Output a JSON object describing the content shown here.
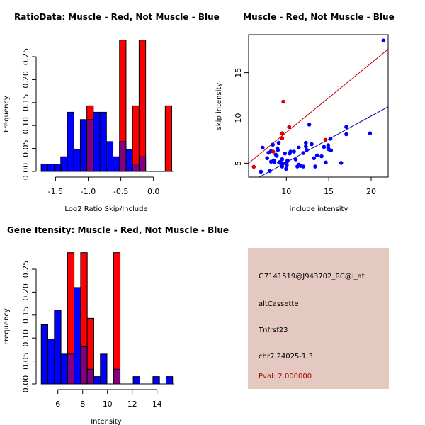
{
  "chart_data": [
    {
      "type": "bar",
      "subtype": "overlaid-histogram",
      "title": "RatioData: Muscle - Red, Not Muscle - Blue",
      "xlabel": "Log2 Ratio Skip/Include",
      "ylabel": "Frequency",
      "bin_start": -1.72,
      "bin_width": 0.1,
      "xticks": [
        -1.5,
        -1.0,
        -0.5,
        0.0
      ],
      "xtick_labels": [
        "-1.5",
        "-1.0",
        "-0.5",
        "0.0"
      ],
      "yticks": [
        0,
        0.05,
        0.1,
        0.15,
        0.2,
        0.25
      ],
      "ytick_labels": [
        "0.00",
        "0.05",
        "0.10",
        "0.15",
        "0.20",
        "0.25"
      ],
      "ylim": [
        0,
        0.286
      ],
      "series": [
        {
          "name": "Not Muscle",
          "color": "#0000ff",
          "values": [
            0.016,
            0.016,
            0.016,
            0.032,
            0.129,
            0.048,
            0.113,
            0.113,
            0.129,
            0.129,
            0.065,
            0.032,
            0.065,
            0.048,
            0.016,
            0.032,
            0,
            0,
            0,
            0
          ]
        },
        {
          "name": "Muscle",
          "color": "#ff0000",
          "values": [
            0,
            0,
            0,
            0,
            0,
            0,
            0,
            0.143,
            0,
            0,
            0,
            0,
            0.286,
            0,
            0.143,
            0.286,
            0,
            0,
            0,
            0.143
          ]
        }
      ]
    },
    {
      "type": "scatter",
      "title": "Muscle - Red, Not Muscle - Blue",
      "xlabel": "include intensity",
      "ylabel": "skip intensity",
      "xlim": [
        5.55,
        22.0
      ],
      "ylim": [
        3.46,
        19.2
      ],
      "xticks": [
        10,
        15,
        20
      ],
      "xtick_labels": [
        "10",
        "15",
        "20"
      ],
      "yticks": [
        5,
        10,
        15
      ],
      "ytick_labels": [
        "5",
        "10",
        "15"
      ],
      "series": [
        {
          "name": "Not Muscle",
          "color": "#0000ff",
          "points": [
            [
              7.0,
              4.06
            ],
            [
              7.2,
              6.72
            ],
            [
              7.74,
              5.55
            ],
            [
              7.9,
              6.15
            ],
            [
              8.05,
              4.14
            ],
            [
              8.2,
              6.33
            ],
            [
              8.2,
              5.16
            ],
            [
              8.4,
              7.04
            ],
            [
              8.5,
              5.3
            ],
            [
              8.6,
              5.13
            ],
            [
              8.75,
              5.94
            ],
            [
              8.86,
              5.81
            ],
            [
              8.94,
              6.64
            ],
            [
              9.0,
              6.46
            ],
            [
              9.1,
              7.25
            ],
            [
              9.14,
              5.08
            ],
            [
              9.3,
              5.16
            ],
            [
              9.4,
              4.9
            ],
            [
              9.5,
              5.44
            ],
            [
              9.5,
              4.63
            ],
            [
              9.6,
              4.97
            ],
            [
              9.83,
              6.07
            ],
            [
              9.97,
              4.37
            ],
            [
              10.05,
              4.76
            ],
            [
              10.05,
              5.1
            ],
            [
              10.14,
              5.3
            ],
            [
              10.4,
              6.07
            ],
            [
              10.5,
              6.28
            ],
            [
              10.9,
              6.28
            ],
            [
              11.1,
              5.42
            ],
            [
              11.3,
              4.63
            ],
            [
              11.45,
              6.72
            ],
            [
              11.45,
              4.84
            ],
            [
              11.7,
              4.7
            ],
            [
              12.0,
              4.63
            ],
            [
              12.0,
              6.12
            ],
            [
              12.3,
              7.25
            ],
            [
              12.3,
              6.85
            ],
            [
              12.4,
              6.46
            ],
            [
              12.7,
              9.26
            ],
            [
              12.98,
              7.1
            ],
            [
              13.26,
              5.55
            ],
            [
              13.4,
              4.63
            ],
            [
              13.62,
              5.86
            ],
            [
              14.15,
              5.76
            ],
            [
              14.43,
              6.8
            ],
            [
              14.65,
              5.08
            ],
            [
              14.93,
              6.98
            ],
            [
              14.93,
              6.72
            ],
            [
              15.0,
              6.54
            ],
            [
              15.2,
              7.7
            ],
            [
              15.26,
              6.41
            ],
            [
              16.46,
              5.03
            ],
            [
              17.07,
              9.0
            ],
            [
              17.07,
              8.2
            ],
            [
              19.86,
              8.3
            ],
            [
              21.45,
              18.55
            ]
          ],
          "fit_line": [
            [
              6.7,
              3.4
            ],
            [
              22.0,
              11.24
            ]
          ]
        },
        {
          "name": "Muscle",
          "color": "#dd0000",
          "points": [
            [
              6.16,
              4.6
            ],
            [
              9.64,
              11.8
            ],
            [
              10.33,
              9.0
            ],
            [
              9.5,
              8.3
            ],
            [
              9.5,
              7.75
            ],
            [
              8.44,
              6.28
            ],
            [
              14.6,
              7.58
            ]
          ],
          "fit_line": [
            [
              5.55,
              5.0
            ],
            [
              22.0,
              17.6
            ]
          ]
        }
      ]
    },
    {
      "type": "bar",
      "subtype": "overlaid-histogram",
      "title": "Gene Itensity: Muscle - Red, Not Muscle - Blue",
      "xlabel": "Intensity",
      "ylabel": "Frequency",
      "bin_start": 4.66,
      "bin_width": 0.53,
      "xticks": [
        6,
        8,
        10,
        12,
        14
      ],
      "xtick_labels": [
        "6",
        "8",
        "10",
        "12",
        "14"
      ],
      "yticks": [
        0,
        0.05,
        0.1,
        0.15,
        0.2,
        0.25
      ],
      "ytick_labels": [
        "0.00",
        "0.05",
        "0.10",
        "0.15",
        "0.20",
        "0.25"
      ],
      "ylim": [
        0,
        0.286
      ],
      "series": [
        {
          "name": "Not Muscle",
          "color": "#0000ff",
          "values": [
            0.129,
            0.097,
            0.161,
            0.065,
            0.065,
            0.21,
            0.081,
            0.032,
            0.016,
            0.065,
            0,
            0.032,
            0,
            0,
            0.016,
            0,
            0,
            0.016,
            0,
            0.016
          ]
        },
        {
          "name": "Muscle",
          "color": "#ff0000",
          "values": [
            0,
            0,
            0,
            0,
            0.286,
            0,
            0.286,
            0.143,
            0,
            0,
            0,
            0.286,
            0,
            0,
            0,
            0,
            0,
            0,
            0,
            0
          ]
        }
      ]
    }
  ],
  "info": {
    "probe_id": "G7141519@J943702_RC@i_at",
    "event_type": "altCassette",
    "gene": "Tnfrsf23",
    "location": "chr7.24025-1.3",
    "pval": "Pval: 2.000000",
    "pval_color": "#aa0000"
  }
}
